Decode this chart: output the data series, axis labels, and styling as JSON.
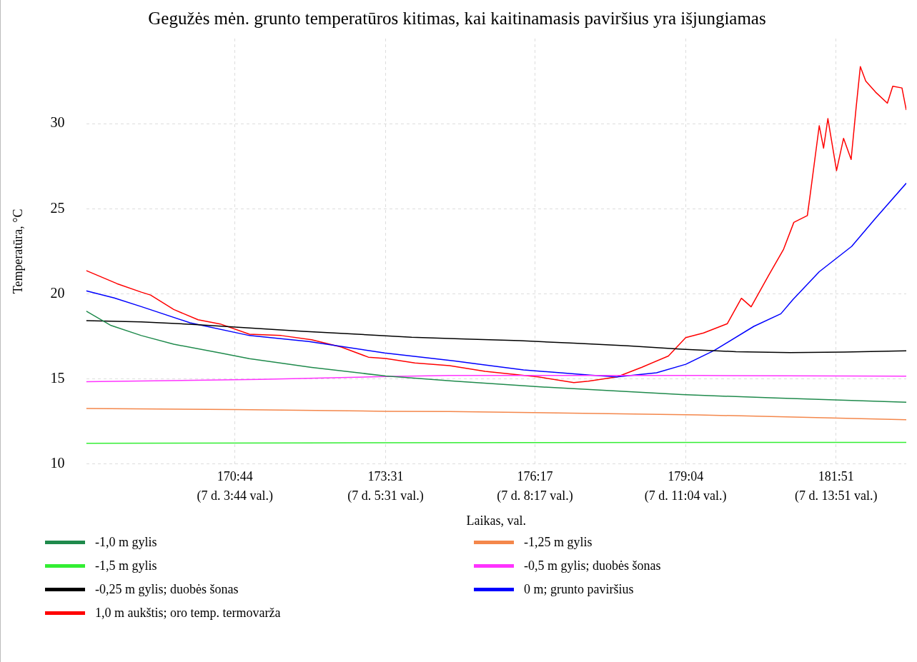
{
  "chart_data": {
    "type": "line",
    "title": "Gegužės mėn. grunto temperatūros kitimas, kai kaitinamasis paviršius yra išjungiamas",
    "xlabel": "Laikas, val.",
    "ylabel": "Temperatūra, °C",
    "xlim": [
      167.98,
      183.15
    ],
    "ylim": [
      10,
      35
    ],
    "yticks": [
      10,
      15,
      20,
      25,
      30
    ],
    "xticks": [
      {
        "value": 170.733,
        "label": "170:44"
      },
      {
        "value": 173.517,
        "label": "173:31"
      },
      {
        "value": 176.283,
        "label": "176:17"
      },
      {
        "value": 179.067,
        "label": "179:04"
      },
      {
        "value": 181.85,
        "label": "181:51"
      }
    ],
    "annotations": [
      "(7 d. 3:44 val.)",
      "(7 d. 5:31 val.)",
      "(7 d. 8:17 val.)",
      "(7 d. 11:04 val.)",
      "(7 d. 13:51 val.)"
    ],
    "grid": true,
    "legend": "bottom",
    "line_style": "solid",
    "series": [
      {
        "name": "-1,0 m gylis",
        "color": "#1f8a4c",
        "x": [
          167.98,
          168.44,
          169.0,
          169.6,
          170.46,
          171.0,
          172.15,
          173.52,
          174.8,
          176.34,
          179.0,
          180.72,
          183.15
        ],
        "values": [
          18.99,
          18.14,
          17.55,
          17.04,
          16.53,
          16.19,
          15.68,
          15.17,
          14.87,
          14.54,
          14.08,
          13.88,
          13.63
        ]
      },
      {
        "name": "-1,25 m gylis",
        "color": "#f4874b",
        "x": [
          167.98,
          170.73,
          173.52,
          174.7,
          179.3,
          183.15
        ],
        "values": [
          13.26,
          13.2,
          13.1,
          13.09,
          12.89,
          12.6
        ]
      },
      {
        "name": "-1,5 m gylis",
        "color": "#33ee33",
        "x": [
          167.98,
          172.0,
          176.0,
          180.0,
          183.15
        ],
        "values": [
          11.22,
          11.24,
          11.26,
          11.27,
          11.27
        ]
      },
      {
        "name": "-0,5 m gylis; duobės šonas",
        "color": "#ff33ff",
        "x": [
          167.98,
          171.2,
          173.52,
          174.7,
          179.35,
          183.15
        ],
        "values": [
          14.84,
          14.97,
          15.14,
          15.2,
          15.2,
          15.16
        ]
      },
      {
        "name": "-0,25 m gylis; duobės šonas",
        "color": "#000000",
        "x": [
          167.98,
          169,
          170,
          171,
          172,
          173,
          174,
          175,
          176,
          177,
          178,
          179,
          180,
          181,
          182,
          183.15
        ],
        "values": [
          18.43,
          18.35,
          18.2,
          18.0,
          17.8,
          17.63,
          17.45,
          17.35,
          17.25,
          17.1,
          16.95,
          16.75,
          16.6,
          16.55,
          16.58,
          16.65
        ]
      },
      {
        "name": "0 m; grunto paviršius",
        "color": "#0000ff",
        "x": [
          167.98,
          168.5,
          169.0,
          169.9,
          171.0,
          172.1,
          173.5,
          174.8,
          176.07,
          177.3,
          177.8,
          178.53,
          179.07,
          179.6,
          180.33,
          180.83,
          181.05,
          181.54,
          182.14,
          182.58,
          183.15
        ],
        "values": [
          20.18,
          19.76,
          19.25,
          18.3,
          17.55,
          17.2,
          16.53,
          16.05,
          15.53,
          15.23,
          15.12,
          15.36,
          15.86,
          16.68,
          18.09,
          18.83,
          19.65,
          21.3,
          22.79,
          24.44,
          26.5
        ]
      },
      {
        "name": "1,0 m aukštis; oro temp. termovarža",
        "color": "#ff0000",
        "x": [
          167.98,
          168.55,
          169.0,
          169.17,
          169.6,
          170.05,
          170.46,
          171.0,
          171.59,
          172.15,
          172.7,
          173.2,
          173.52,
          174.06,
          174.7,
          175.36,
          176.34,
          177.0,
          177.27,
          177.8,
          178.26,
          178.75,
          179.07,
          179.4,
          179.84,
          180.1,
          180.28,
          180.6,
          180.88,
          181.07,
          181.32,
          181.37,
          181.54,
          181.62,
          181.7,
          181.86,
          181.99,
          182.13,
          182.22,
          182.3,
          182.4,
          182.58,
          182.8,
          182.9,
          183.07,
          183.15
        ],
        "values": [
          21.37,
          20.6,
          20.1,
          19.93,
          19.08,
          18.48,
          18.23,
          17.63,
          17.55,
          17.3,
          16.87,
          16.28,
          16.2,
          15.94,
          15.78,
          15.45,
          15.12,
          14.79,
          14.87,
          15.12,
          15.69,
          16.35,
          17.43,
          17.7,
          18.25,
          19.74,
          19.24,
          21.06,
          22.62,
          24.2,
          24.6,
          25.76,
          29.88,
          28.56,
          30.3,
          27.24,
          29.14,
          27.9,
          30.87,
          33.35,
          32.5,
          31.86,
          31.2,
          32.2,
          32.1,
          30.8
        ]
      }
    ]
  }
}
